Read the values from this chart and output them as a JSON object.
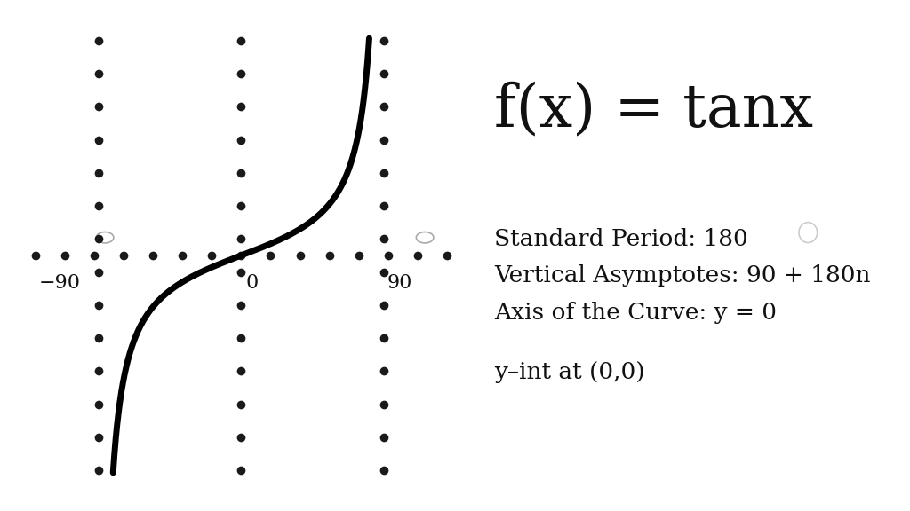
{
  "background_color": "#ffffff",
  "title": "f(x) = tanx",
  "title_fontsize": 48,
  "info_lines": [
    "Standard Period: 180",
    "Vertical Asymptotes: 90 + 180n",
    "Axis of the Curve: y = 0"
  ],
  "info_fontsize": 19,
  "yint_text": "y–int at (0,0)",
  "yint_fontsize": 19,
  "dot_color": "#1a1a1a",
  "curve_color": "#000000",
  "label_color": "#111111",
  "dot_markersize": 7,
  "degree_circle_color": "#aaaaaa",
  "small_circle_color": "#cccccc"
}
